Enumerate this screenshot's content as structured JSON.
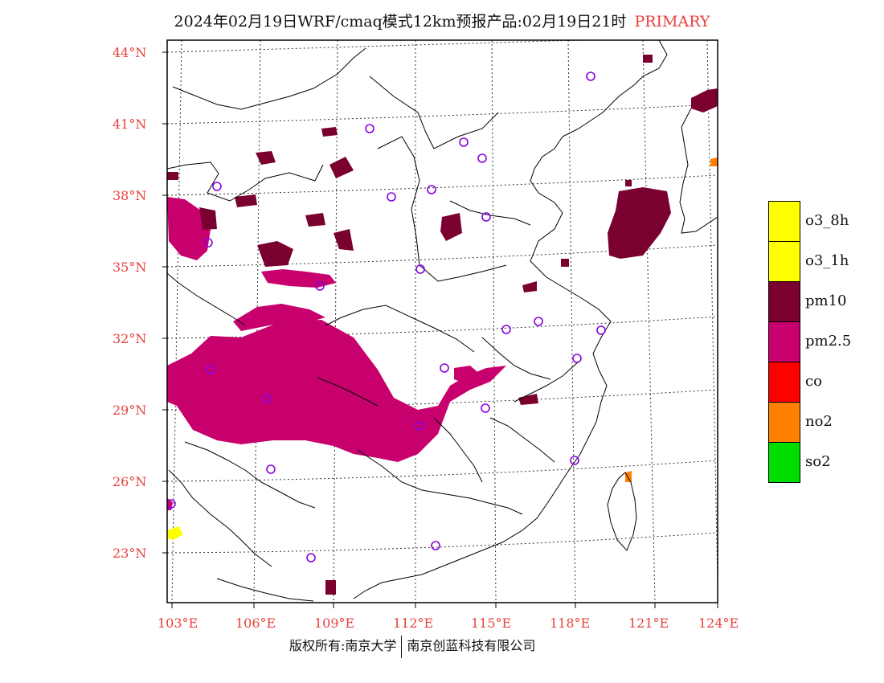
{
  "title": {
    "main": "2024年02月19日WRF/cmaq模式12km预报产品:02月19日21时",
    "tag": "PRIMARY"
  },
  "lat_labels": [
    "44°N",
    "41°N",
    "38°N",
    "35°N",
    "32°N",
    "29°N",
    "26°N",
    "23°N"
  ],
  "lon_labels": [
    "103°E",
    "106°E",
    "109°E",
    "112°E",
    "115°E",
    "118°E",
    "121°E",
    "124°E"
  ],
  "legend": [
    {
      "label": "o3_8h",
      "color": "#ffff00"
    },
    {
      "label": "o3_1h",
      "color": "#ffff00"
    },
    {
      "label": "pm10",
      "color": "#7a0030"
    },
    {
      "label": "pm2.5",
      "color": "#c8006e"
    },
    {
      "label": "co",
      "color": "#ff0000"
    },
    {
      "label": "no2",
      "color": "#ff8000"
    },
    {
      "label": "so2",
      "color": "#00dd00"
    }
  ],
  "footer": {
    "left": "版权所有:南京大学",
    "right": "南京创蓝科技有限公司"
  }
}
